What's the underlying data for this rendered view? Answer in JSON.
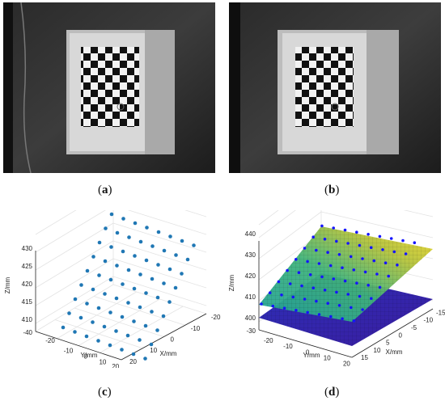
{
  "panels": [
    {
      "id": "a",
      "caption_open": "(",
      "caption_letter": "a",
      "caption_close": ")"
    },
    {
      "id": "b",
      "caption_open": "(",
      "caption_letter": "b",
      "caption_close": ")"
    },
    {
      "id": "c",
      "caption_open": "(",
      "caption_letter": "c",
      "caption_close": ")"
    },
    {
      "id": "d",
      "caption_open": "(",
      "caption_letter": "d",
      "caption_close": ")"
    }
  ],
  "chart_data": [
    {
      "type": "scatter",
      "panel": "c",
      "projection": "3d",
      "title": "",
      "xlabel": "Y/mm",
      "ylabel": "X/mm",
      "zlabel": "Z/mm",
      "x_ticks": [
        "-20",
        "-10",
        "0",
        "10",
        "20"
      ],
      "y_ticks": [
        "-20",
        "-10",
        "0",
        "10",
        "20"
      ],
      "z_ticks": [
        "410",
        "415",
        "420",
        "425",
        "430"
      ],
      "z_extra_tick": "-40",
      "marker_color": "#1f77b4",
      "grid": true,
      "description_points": "9 x 8 grid of calibration points on a tilted plane"
    },
    {
      "type": "scatter+surface",
      "panel": "d",
      "projection": "3d",
      "title": "",
      "xlabel": "Y/mm",
      "ylabel": "X/mm",
      "zlabel": "Z/mm",
      "x_ticks": [
        "-20",
        "-10",
        "0",
        "10",
        "20"
      ],
      "y_ticks": [
        "-15",
        "-10",
        "-5",
        "0",
        "5",
        "10",
        "15"
      ],
      "z_ticks": [
        "400",
        "410",
        "420",
        "430",
        "440"
      ],
      "z_extra_tick": "-30",
      "marker_color": "#1515ff",
      "grid": true
    }
  ]
}
